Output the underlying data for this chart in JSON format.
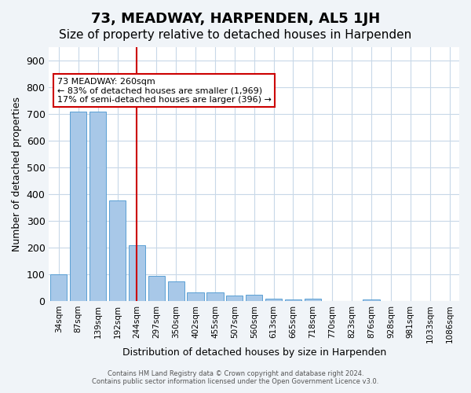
{
  "title": "73, MEADWAY, HARPENDEN, AL5 1JH",
  "subtitle": "Size of property relative to detached houses in Harpenden",
  "xlabel": "Distribution of detached houses by size in Harpenden",
  "ylabel": "Number of detached properties",
  "categories": [
    "34sqm",
    "87sqm",
    "139sqm",
    "192sqm",
    "244sqm",
    "297sqm",
    "350sqm",
    "402sqm",
    "455sqm",
    "507sqm",
    "560sqm",
    "613sqm",
    "665sqm",
    "718sqm",
    "770sqm",
    "823sqm",
    "876sqm",
    "928sqm",
    "981sqm",
    "1033sqm",
    "1086sqm"
  ],
  "values": [
    100,
    710,
    710,
    375,
    210,
    95,
    72,
    33,
    33,
    20,
    22,
    10,
    7,
    10,
    0,
    0,
    7,
    0,
    0,
    0,
    0
  ],
  "bar_color": "#a8c8e8",
  "bar_edge_color": "#5a9fd4",
  "vline_x_index": 4,
  "vline_color": "#cc0000",
  "annotation_title": "73 MEADWAY: 260sqm",
  "annotation_line1": "← 83% of detached houses are smaller (1,969)",
  "annotation_line2": "17% of semi-detached houses are larger (396) →",
  "annotation_box_color": "#cc0000",
  "footer_line1": "Contains HM Land Registry data © Crown copyright and database right 2024.",
  "footer_line2": "Contains public sector information licensed under the Open Government Licence v3.0.",
  "bg_color": "#f0f4f8",
  "plot_bg_color": "#ffffff",
  "grid_color": "#c8d8e8",
  "ylim": [
    0,
    950
  ],
  "title_fontsize": 13,
  "subtitle_fontsize": 11
}
